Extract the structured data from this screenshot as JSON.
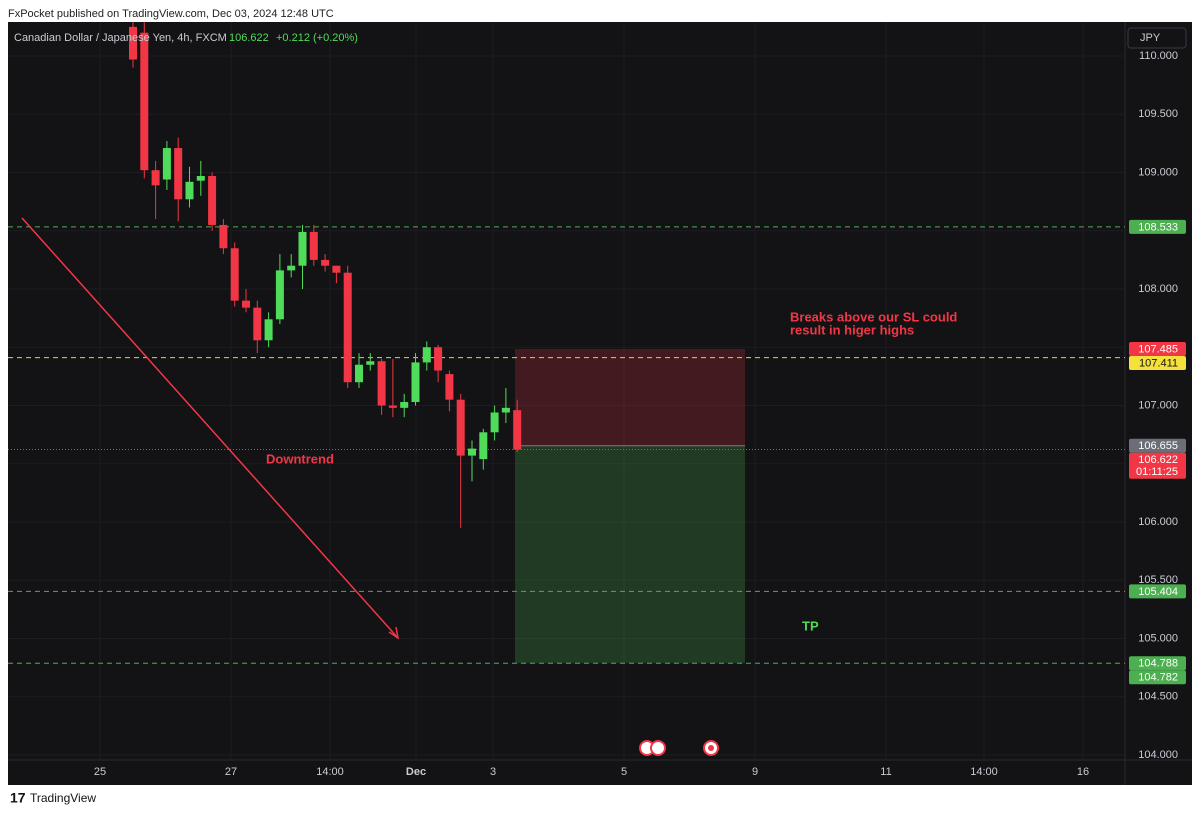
{
  "header": {
    "publisher": "FxPocket published on TradingView.com, Dec 03, 2024 12:48 UTC",
    "brand": "TradingView"
  },
  "chart_data": {
    "type": "candlestick",
    "symbol": "Canadian Dollar / Japanese Yen, 4h, FXCM",
    "last": "106.622",
    "change": "+0.212 (+0.20%)",
    "currency": "JPY",
    "open": [
      110.25,
      110.2,
      109.02,
      108.94,
      109.21,
      108.77,
      108.93,
      108.97,
      108.55,
      108.35,
      107.9,
      107.84,
      107.56,
      107.74,
      108.16,
      108.2,
      108.49,
      108.25,
      108.2,
      108.14,
      107.2,
      107.35,
      107.38,
      107.0,
      106.98,
      107.03,
      107.37,
      107.5,
      107.27,
      107.05,
      106.57,
      106.54,
      106.77,
      106.94,
      106.96
    ],
    "high": [
      110.29,
      110.29,
      109.1,
      109.27,
      109.3,
      109.05,
      109.1,
      109.0,
      108.6,
      108.4,
      108.0,
      107.9,
      107.8,
      108.3,
      108.3,
      108.55,
      108.55,
      108.3,
      108.2,
      108.2,
      107.45,
      107.45,
      107.4,
      107.4,
      107.1,
      107.45,
      107.55,
      107.52,
      107.3,
      107.1,
      106.7,
      106.8,
      107.0,
      107.15,
      107.05
    ],
    "low": [
      109.9,
      108.95,
      108.6,
      108.85,
      108.58,
      108.7,
      108.8,
      108.5,
      108.3,
      107.85,
      107.8,
      107.45,
      107.5,
      107.7,
      108.1,
      108.0,
      108.2,
      108.15,
      108.05,
      107.15,
      107.15,
      107.3,
      106.92,
      106.9,
      106.9,
      107.0,
      107.3,
      107.2,
      106.95,
      105.95,
      106.35,
      106.45,
      106.7,
      106.85,
      106.6
    ],
    "close": [
      109.97,
      109.02,
      108.89,
      109.21,
      108.77,
      108.92,
      108.97,
      108.55,
      108.35,
      107.9,
      107.84,
      107.56,
      107.74,
      108.16,
      108.2,
      108.49,
      108.25,
      108.2,
      108.14,
      107.2,
      107.35,
      107.38,
      107.0,
      106.98,
      107.03,
      107.37,
      107.5,
      107.3,
      107.05,
      106.57,
      106.63,
      106.77,
      106.94,
      106.98,
      106.622
    ],
    "up_color": "#4fdc5a",
    "down_color": "#f23645",
    "xticks": [
      "25",
      "27",
      "14:00",
      "Dec",
      "3",
      "5",
      "9",
      "11",
      "14:00",
      "16"
    ],
    "ylim": [
      103.957,
      110.292
    ],
    "yticks": [
      {
        "value": 104,
        "label": "104.000"
      },
      {
        "value": 104.5,
        "label": "104.500"
      },
      {
        "value": 105,
        "label": "105.000"
      },
      {
        "value": 105.5,
        "label": "105.500"
      },
      {
        "value": 106,
        "label": "106.000"
      },
      {
        "value": 106.5,
        "label": "106.500"
      },
      {
        "value": 107,
        "label": "107.000"
      },
      {
        "value": 107.5,
        "label": "107.500"
      },
      {
        "value": 108,
        "label": "108.000"
      },
      {
        "value": 108.5,
        "label": "108.500"
      },
      {
        "value": 109,
        "label": "109.000"
      },
      {
        "value": 109.5,
        "label": "109.500"
      },
      {
        "value": 110,
        "label": "110.000"
      }
    ],
    "grid": true,
    "levels": [
      {
        "value": 108.533,
        "color": "#4caf50"
      },
      {
        "value": 107.411,
        "color": "#e6d23a"
      },
      {
        "value": 105.404,
        "color": "#4caf50"
      },
      {
        "value": 104.788,
        "color": "#4caf50"
      }
    ],
    "position": {
      "stop": 107.485,
      "entry": 106.655,
      "target": 104.788
    },
    "price_tags": [
      {
        "value": 108.533,
        "color": "#4caf50"
      },
      {
        "value": 107.485,
        "color": "#f23645"
      },
      {
        "value": 107.411,
        "color": "#f5e13c"
      },
      {
        "value": 106.655,
        "color": "#6b6e77"
      },
      {
        "value": 106.622,
        "color": "#f23645"
      },
      {
        "value": 105.404,
        "color": "#4caf50"
      },
      {
        "value": 104.788,
        "color": "#4caf50"
      },
      {
        "value": 104.782,
        "color": "#4caf50"
      }
    ],
    "countdown": "01:11:25",
    "annotations": {
      "trend": "Downtrend",
      "note": [
        "Breaks above our SL could",
        "result in higer highs"
      ],
      "target": "TP"
    }
  }
}
